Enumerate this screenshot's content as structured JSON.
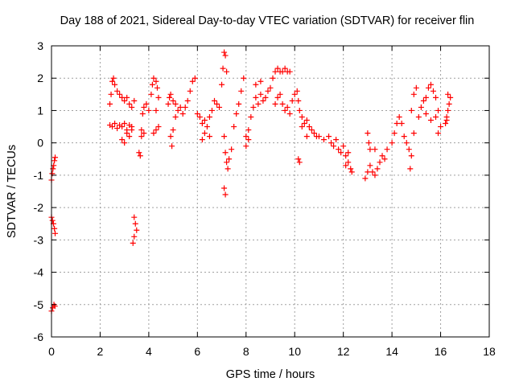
{
  "chart_data": {
    "type": "scatter",
    "title": "Day 188 of 2021, Sidereal Day-to-day VTEC variation (SDTVAR) for receiver flin",
    "xlabel": "GPS time / hours",
    "ylabel": "SDTVAR / TECUs",
    "xlim": [
      0,
      18
    ],
    "ylim": [
      -6,
      3
    ],
    "x_ticks": [
      "0",
      "2",
      "4",
      "6",
      "8",
      "10",
      "12",
      "14",
      "16",
      "18"
    ],
    "y_ticks": [
      "3",
      "2",
      "1",
      "0",
      "-1",
      "-2",
      "-3",
      "-4",
      "-5",
      "-6"
    ],
    "grid": true,
    "marker": "plus",
    "color": "#ff0000",
    "series": [
      {
        "name": "SDTVAR",
        "points": [
          [
            0.0,
            -1.15
          ],
          [
            0.03,
            -0.95
          ],
          [
            0.06,
            -0.8
          ],
          [
            0.09,
            -0.7
          ],
          [
            0.12,
            -0.55
          ],
          [
            0.15,
            -0.45
          ],
          [
            0.0,
            -2.3
          ],
          [
            0.04,
            -2.4
          ],
          [
            0.08,
            -2.5
          ],
          [
            0.12,
            -2.65
          ],
          [
            0.15,
            -2.8
          ],
          [
            0.0,
            -5.2
          ],
          [
            0.05,
            -5.1
          ],
          [
            0.1,
            -5.0
          ],
          [
            0.14,
            -5.05
          ],
          [
            2.4,
            0.55
          ],
          [
            2.5,
            0.5
          ],
          [
            2.6,
            0.6
          ],
          [
            2.7,
            0.45
          ],
          [
            2.8,
            0.55
          ],
          [
            2.9,
            0.5
          ],
          [
            3.0,
            0.6
          ],
          [
            3.1,
            0.4
          ],
          [
            3.2,
            0.55
          ],
          [
            3.3,
            0.5
          ],
          [
            2.4,
            1.2
          ],
          [
            2.45,
            1.5
          ],
          [
            2.5,
            1.9
          ],
          [
            2.55,
            2.0
          ],
          [
            2.6,
            1.8
          ],
          [
            2.7,
            1.6
          ],
          [
            2.8,
            1.5
          ],
          [
            2.9,
            1.4
          ],
          [
            3.0,
            1.3
          ],
          [
            3.1,
            1.4
          ],
          [
            3.2,
            1.2
          ],
          [
            3.3,
            1.1
          ],
          [
            3.4,
            1.3
          ],
          [
            2.9,
            0.1
          ],
          [
            3.0,
            0.0
          ],
          [
            3.1,
            0.3
          ],
          [
            3.2,
            0.2
          ],
          [
            3.3,
            0.4
          ],
          [
            3.4,
            -2.3
          ],
          [
            3.45,
            -2.5
          ],
          [
            3.5,
            -2.7
          ],
          [
            3.4,
            -2.9
          ],
          [
            3.35,
            -3.1
          ],
          [
            3.6,
            -0.3
          ],
          [
            3.65,
            -0.4
          ],
          [
            3.7,
            0.4
          ],
          [
            3.75,
            0.9
          ],
          [
            3.8,
            1.1
          ],
          [
            3.9,
            1.2
          ],
          [
            4.0,
            1.0
          ],
          [
            3.7,
            0.2
          ],
          [
            3.8,
            0.3
          ],
          [
            4.1,
            1.5
          ],
          [
            4.15,
            1.8
          ],
          [
            4.2,
            2.0
          ],
          [
            4.3,
            1.9
          ],
          [
            4.35,
            1.7
          ],
          [
            4.4,
            1.4
          ],
          [
            4.2,
            0.3
          ],
          [
            4.3,
            0.4
          ],
          [
            4.4,
            0.5
          ],
          [
            4.3,
            1.0
          ],
          [
            4.8,
            1.2
          ],
          [
            4.85,
            1.4
          ],
          [
            4.9,
            1.5
          ],
          [
            5.0,
            1.3
          ],
          [
            5.1,
            1.2
          ],
          [
            5.2,
            1.0
          ],
          [
            5.3,
            1.1
          ],
          [
            5.4,
            0.9
          ],
          [
            5.5,
            1.1
          ],
          [
            5.6,
            1.3
          ],
          [
            5.7,
            1.6
          ],
          [
            5.8,
            1.9
          ],
          [
            5.9,
            2.0
          ],
          [
            4.9,
            0.2
          ],
          [
            4.95,
            -0.1
          ],
          [
            5.0,
            0.4
          ],
          [
            5.1,
            0.8
          ],
          [
            6.0,
            0.9
          ],
          [
            6.1,
            0.8
          ],
          [
            6.2,
            0.6
          ],
          [
            6.3,
            0.7
          ],
          [
            6.4,
            0.5
          ],
          [
            6.5,
            0.8
          ],
          [
            6.6,
            1.0
          ],
          [
            6.7,
            1.3
          ],
          [
            6.8,
            1.2
          ],
          [
            6.9,
            1.1
          ],
          [
            6.2,
            0.1
          ],
          [
            6.3,
            0.3
          ],
          [
            6.5,
            0.2
          ],
          [
            7.0,
            1.8
          ],
          [
            7.05,
            2.3
          ],
          [
            7.1,
            2.8
          ],
          [
            7.15,
            2.7
          ],
          [
            7.2,
            2.2
          ],
          [
            7.1,
            0.2
          ],
          [
            7.15,
            -0.3
          ],
          [
            7.2,
            -0.6
          ],
          [
            7.25,
            -0.8
          ],
          [
            7.1,
            -1.4
          ],
          [
            7.15,
            -1.6
          ],
          [
            7.3,
            -0.5
          ],
          [
            7.4,
            -0.2
          ],
          [
            7.5,
            0.5
          ],
          [
            7.6,
            0.9
          ],
          [
            7.7,
            1.2
          ],
          [
            7.8,
            1.6
          ],
          [
            7.9,
            2.0
          ],
          [
            8.0,
            0.2
          ],
          [
            8.1,
            0.4
          ],
          [
            8.2,
            0.8
          ],
          [
            8.3,
            1.1
          ],
          [
            8.4,
            1.4
          ],
          [
            8.5,
            1.2
          ],
          [
            8.6,
            1.5
          ],
          [
            8.7,
            1.3
          ],
          [
            8.8,
            1.4
          ],
          [
            8.9,
            1.6
          ],
          [
            9.0,
            1.7
          ],
          [
            8.4,
            1.8
          ],
          [
            8.6,
            1.9
          ],
          [
            8.0,
            -0.1
          ],
          [
            8.1,
            0.1
          ],
          [
            9.1,
            2.0
          ],
          [
            9.2,
            2.2
          ],
          [
            9.3,
            2.3
          ],
          [
            9.4,
            2.2
          ],
          [
            9.5,
            2.2
          ],
          [
            9.6,
            2.3
          ],
          [
            9.7,
            2.2
          ],
          [
            9.8,
            2.2
          ],
          [
            9.2,
            1.2
          ],
          [
            9.3,
            1.4
          ],
          [
            9.4,
            1.5
          ],
          [
            9.5,
            1.2
          ],
          [
            9.6,
            1.0
          ],
          [
            9.7,
            1.1
          ],
          [
            9.8,
            0.9
          ],
          [
            9.9,
            1.3
          ],
          [
            10.0,
            1.5
          ],
          [
            10.1,
            1.6
          ],
          [
            10.15,
            1.3
          ],
          [
            10.2,
            1.0
          ],
          [
            10.3,
            0.8
          ],
          [
            10.4,
            0.6
          ],
          [
            10.5,
            0.7
          ],
          [
            10.6,
            0.5
          ],
          [
            10.7,
            0.4
          ],
          [
            10.8,
            0.3
          ],
          [
            10.9,
            0.2
          ],
          [
            10.15,
            -0.5
          ],
          [
            10.2,
            -0.6
          ],
          [
            10.3,
            0.5
          ],
          [
            10.5,
            0.2
          ],
          [
            11.0,
            0.2
          ],
          [
            11.2,
            0.1
          ],
          [
            11.4,
            0.2
          ],
          [
            11.5,
            0.0
          ],
          [
            11.6,
            -0.1
          ],
          [
            11.7,
            0.1
          ],
          [
            11.8,
            -0.2
          ],
          [
            11.9,
            -0.3
          ],
          [
            12.0,
            -0.1
          ],
          [
            12.1,
            -0.4
          ],
          [
            12.2,
            -0.6
          ],
          [
            12.3,
            -0.8
          ],
          [
            12.35,
            -0.9
          ],
          [
            12.1,
            -0.7
          ],
          [
            12.2,
            -0.3
          ],
          [
            12.9,
            -1.1
          ],
          [
            13.0,
            -0.9
          ],
          [
            13.1,
            -0.7
          ],
          [
            13.2,
            -0.9
          ],
          [
            13.3,
            -1.0
          ],
          [
            13.0,
            0.3
          ],
          [
            13.05,
            0.0
          ],
          [
            13.1,
            -0.2
          ],
          [
            13.3,
            -0.2
          ],
          [
            13.4,
            -0.8
          ],
          [
            13.5,
            -0.6
          ],
          [
            13.6,
            -0.4
          ],
          [
            13.7,
            -0.5
          ],
          [
            13.8,
            -0.2
          ],
          [
            14.0,
            0.0
          ],
          [
            14.1,
            0.3
          ],
          [
            14.2,
            0.6
          ],
          [
            14.3,
            0.8
          ],
          [
            14.4,
            0.6
          ],
          [
            14.5,
            0.2
          ],
          [
            14.6,
            0.0
          ],
          [
            14.7,
            -0.2
          ],
          [
            14.75,
            -0.8
          ],
          [
            14.8,
            -0.4
          ],
          [
            14.9,
            0.3
          ],
          [
            14.8,
            1.0
          ],
          [
            14.9,
            1.5
          ],
          [
            15.0,
            1.7
          ],
          [
            15.1,
            0.8
          ],
          [
            15.2,
            1.1
          ],
          [
            15.3,
            1.3
          ],
          [
            15.4,
            1.4
          ],
          [
            15.5,
            1.7
          ],
          [
            15.6,
            1.8
          ],
          [
            15.7,
            1.6
          ],
          [
            15.8,
            1.4
          ],
          [
            15.9,
            1.0
          ],
          [
            15.4,
            0.9
          ],
          [
            15.6,
            0.7
          ],
          [
            15.8,
            0.8
          ],
          [
            15.9,
            0.3
          ],
          [
            16.0,
            0.5
          ],
          [
            16.2,
            0.6
          ],
          [
            16.25,
            0.8
          ],
          [
            16.3,
            1.0
          ],
          [
            16.35,
            1.2
          ],
          [
            16.4,
            1.4
          ],
          [
            16.3,
            1.5
          ],
          [
            16.25,
            0.7
          ]
        ]
      }
    ]
  }
}
